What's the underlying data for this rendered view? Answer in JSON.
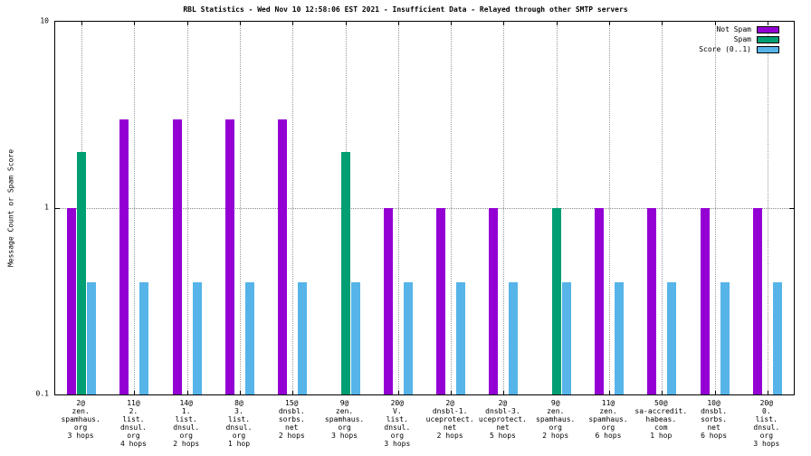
{
  "chart_data": {
    "type": "bar",
    "title": "RBL Statistics - Wed Nov 10 12:58:06 EST 2021 - Insufficient Data - Relayed through other SMTP servers",
    "ylabel": "Message Count or Spam Score",
    "yscale": "log",
    "ylim": [
      0.1,
      10
    ],
    "ytick_labels": [
      "10",
      "1",
      "0.1"
    ],
    "ytick_values": [
      10,
      1,
      0.1
    ],
    "grid": true,
    "legend_position": "top-right",
    "categories": [
      [
        "2@",
        "zen.",
        "spamhaus.",
        "org",
        "3 hops"
      ],
      [
        "11@",
        "2.",
        "list.",
        "dnsul.",
        "org",
        "4 hops"
      ],
      [
        "14@",
        "1.",
        "list.",
        "dnsul.",
        "org",
        "2 hops"
      ],
      [
        "8@",
        "3.",
        "list.",
        "dnsul.",
        "org",
        "1 hop"
      ],
      [
        "15@",
        "dnsbl.",
        "sorbs.",
        "net",
        "2 hops"
      ],
      [
        "9@",
        "zen.",
        "spamhaus.",
        "org",
        "3 hops"
      ],
      [
        "20@",
        "V.",
        "list.",
        "dnsul.",
        "org",
        "3 hops"
      ],
      [
        "2@",
        "dnsbl-1.",
        "uceprotect.",
        "net",
        "2 hops"
      ],
      [
        "2@",
        "dnsbl-3.",
        "uceprotect.",
        "net",
        "5 hops"
      ],
      [
        "9@",
        "zen.",
        "spamhaus.",
        "org",
        "2 hops"
      ],
      [
        "11@",
        "zen.",
        "spamhaus.",
        "org",
        "6 hops"
      ],
      [
        "50@",
        "sa-accredit.",
        "habeas.",
        "com",
        "1 hop"
      ],
      [
        "10@",
        "dnsbl.",
        "sorbs.",
        "net",
        "6 hops"
      ],
      [
        "20@",
        "0.",
        "list.",
        "dnsul.",
        "org",
        "3 hops"
      ]
    ],
    "series": [
      {
        "name": "Not Spam",
        "color": "#9400d3",
        "values": [
          1,
          3,
          3,
          3,
          3,
          null,
          1,
          1,
          1,
          null,
          1,
          1,
          1,
          1
        ]
      },
      {
        "name": "Spam",
        "color": "#009e73",
        "values": [
          2,
          null,
          null,
          null,
          null,
          2,
          null,
          null,
          null,
          1,
          null,
          null,
          null,
          null
        ]
      },
      {
        "name": "Score (0..1)",
        "color": "#56b4e9",
        "values": [
          0.4,
          0.4,
          0.4,
          0.4,
          0.4,
          0.4,
          0.4,
          0.4,
          0.4,
          0.4,
          0.4,
          0.4,
          0.4,
          0.4
        ]
      }
    ]
  }
}
